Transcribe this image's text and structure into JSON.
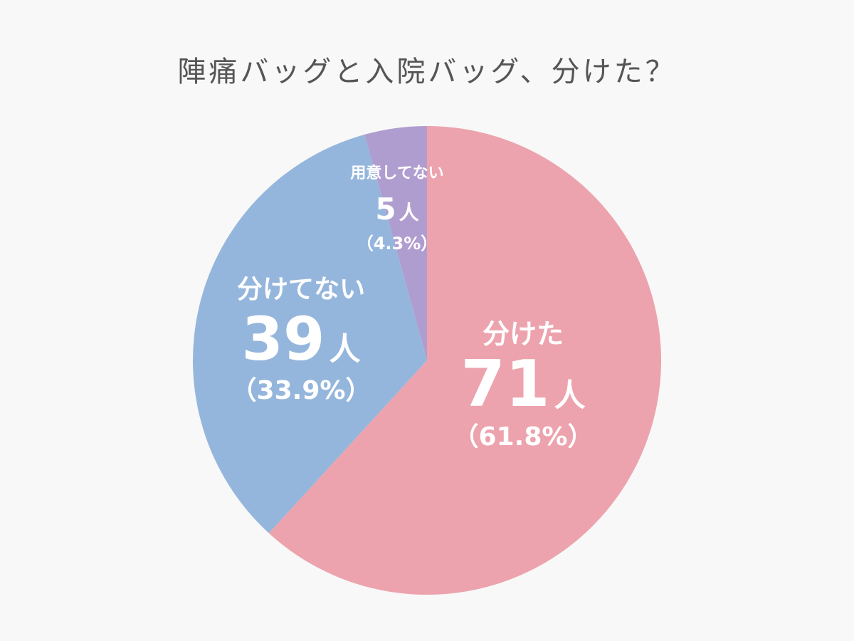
{
  "chart_data": {
    "type": "pie",
    "title": "陣痛バッグと入院バッグ、分けた？",
    "slices": [
      {
        "label": "分けた",
        "count": 71,
        "unit": "人",
        "percent_text": "（61.8%）",
        "value": 61.8,
        "color": "#eca3ad"
      },
      {
        "label": "分けてない",
        "count": 39,
        "unit": "人",
        "percent_text": "（33.9%）",
        "value": 33.9,
        "color": "#95b6dc"
      },
      {
        "label": "用意してない",
        "count": 5,
        "unit": "人",
        "percent_text": "（4.3%）",
        "value": 4.3,
        "color": "#b09dd0"
      }
    ]
  }
}
